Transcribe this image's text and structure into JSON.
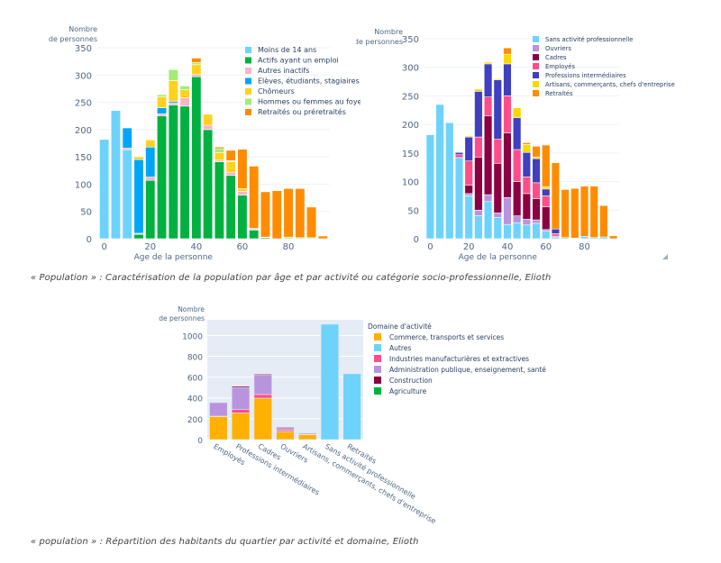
{
  "captions": {
    "caption1": "« Population » : Caractérisation de la population par âge et par activité ou catégorie socio-professionnelle, Elioth",
    "caption2": "« population » : Répartition des habitants du quartier par activité et domaine, Elioth"
  },
  "chart_data": [
    {
      "id": "chart1",
      "type": "bar",
      "stacked": true,
      "title": "",
      "xlabel": "Age de la personne",
      "ylabel": "Nombre de personnes",
      "xlim": [
        -3,
        98
      ],
      "ylim": [
        0,
        350
      ],
      "xticks": [
        0,
        20,
        40,
        60,
        80
      ],
      "yticks": [
        0,
        50,
        100,
        150,
        200,
        250,
        300,
        350
      ],
      "grid": true,
      "legend_position": "top-right",
      "x": [
        0,
        5,
        10,
        15,
        20,
        25,
        30,
        35,
        40,
        45,
        50,
        55,
        60,
        65,
        70,
        75,
        80,
        85,
        90,
        95
      ],
      "series": [
        {
          "name": "Moins de 14 ans",
          "color": "#6dd3fb",
          "values": [
            182,
            235,
            163,
            0,
            0,
            0,
            0,
            0,
            0,
            0,
            0,
            0,
            0,
            0,
            0,
            0,
            0,
            0,
            0,
            0
          ]
        },
        {
          "name": "Actifs ayant un emploi",
          "color": "#00b140",
          "values": [
            0,
            0,
            0,
            8,
            107,
            225,
            245,
            243,
            297,
            200,
            141,
            116,
            80,
            16,
            2,
            0,
            0,
            0,
            0,
            0
          ]
        },
        {
          "name": "Autres inactifs",
          "color": "#ffb3c8",
          "values": [
            0,
            0,
            3,
            2,
            6,
            4,
            4,
            15,
            4,
            8,
            3,
            6,
            7,
            2,
            0,
            0,
            0,
            0,
            0,
            0
          ]
        },
        {
          "name": "Elèves, étudiants, stagiaires",
          "color": "#00a6f5",
          "values": [
            0,
            0,
            37,
            135,
            55,
            11,
            3,
            0,
            0,
            0,
            0,
            0,
            0,
            0,
            0,
            0,
            0,
            0,
            0,
            0
          ]
        },
        {
          "name": "Chômeurs",
          "color": "#ffd21f",
          "values": [
            0,
            0,
            0,
            5,
            13,
            20,
            38,
            15,
            18,
            20,
            14,
            19,
            5,
            1,
            0,
            0,
            0,
            0,
            0,
            0
          ]
        },
        {
          "name": "Hommes ou femmes au foyer",
          "color": "#a4eb78",
          "values": [
            0,
            0,
            0,
            0,
            0,
            4,
            20,
            7,
            4,
            0,
            7,
            2,
            0,
            0,
            1,
            0,
            3,
            2,
            2,
            0
          ]
        },
        {
          "name": "Retraités ou préretraités",
          "color": "#ff8c00",
          "values": [
            0,
            0,
            0,
            0,
            0,
            0,
            0,
            0,
            8,
            0,
            3,
            19,
            72,
            114,
            83,
            88,
            89,
            90,
            56,
            5
          ]
        }
      ]
    },
    {
      "id": "chart2",
      "type": "bar",
      "stacked": true,
      "title": "",
      "xlabel": "Age de la personne",
      "ylabel": "Nombre de personnes",
      "xlim": [
        -3,
        98
      ],
      "ylim": [
        0,
        350
      ],
      "xticks": [
        0,
        20,
        40,
        60,
        80
      ],
      "yticks": [
        0,
        50,
        100,
        150,
        200,
        250,
        300,
        350
      ],
      "grid": true,
      "legend_position": "top-right",
      "x": [
        0,
        5,
        10,
        15,
        20,
        25,
        30,
        35,
        40,
        45,
        50,
        55,
        60,
        65,
        70,
        75,
        80,
        85,
        90,
        95
      ],
      "series": [
        {
          "name": "Sans activité professionnelle",
          "color": "#6dd3fb",
          "values": [
            182,
            235,
            203,
            142,
            75,
            40,
            65,
            37,
            25,
            28,
            24,
            27,
            13,
            2,
            2,
            1,
            4,
            2,
            3,
            0
          ]
        },
        {
          "name": "Ouvriers",
          "color": "#b894de",
          "values": [
            0,
            0,
            0,
            0,
            4,
            10,
            12,
            8,
            47,
            12,
            10,
            6,
            3,
            2,
            0,
            0,
            0,
            0,
            0,
            0
          ]
        },
        {
          "name": "Cadres",
          "color": "#8b0043",
          "values": [
            0,
            0,
            0,
            0,
            15,
            93,
            138,
            87,
            113,
            60,
            45,
            37,
            40,
            2,
            0,
            0,
            0,
            0,
            0,
            0
          ]
        },
        {
          "name": "Employés",
          "color": "#ff4d8a",
          "values": [
            0,
            0,
            0,
            5,
            42,
            35,
            33,
            42,
            65,
            56,
            29,
            28,
            19,
            3,
            0,
            0,
            0,
            0,
            0,
            0
          ]
        },
        {
          "name": "Professions intermédiaires",
          "color": "#3f3fbf",
          "values": [
            0,
            0,
            0,
            4,
            42,
            80,
            58,
            104,
            56,
            56,
            43,
            42,
            12,
            8,
            0,
            0,
            0,
            0,
            0,
            0
          ]
        },
        {
          "name": "Artisans, commerçants, chefs d'entreprise",
          "color": "#ffd600",
          "values": [
            0,
            0,
            0,
            0,
            2,
            4,
            3,
            2,
            17,
            17,
            14,
            3,
            4,
            0,
            0,
            0,
            0,
            0,
            0,
            0
          ]
        },
        {
          "name": "Retraités",
          "color": "#ff8c00",
          "values": [
            0,
            0,
            0,
            0,
            0,
            0,
            0,
            0,
            11,
            0,
            3,
            19,
            73,
            116,
            84,
            87,
            88,
            90,
            55,
            5
          ]
        }
      ]
    },
    {
      "id": "chart3",
      "type": "bar",
      "stacked": true,
      "title": "",
      "xlabel": "",
      "ylabel": "Nombre de personnes",
      "ylim": [
        0,
        1150
      ],
      "yticks": [
        0,
        200,
        400,
        600,
        800,
        1000
      ],
      "grid": true,
      "legend_title": "Domaine d'activité",
      "legend_position": "right",
      "categories": [
        "Employés",
        "Professions intermédiaires",
        "Cadres",
        "Ouvriers",
        "Artisans, commerçants, chefs d'entreprise",
        "Sans activité professionnelle",
        "Retraités"
      ],
      "series": [
        {
          "name": "Commerce, transports et services",
          "color": "#ffb000",
          "values": [
            222,
            255,
            398,
            78,
            48,
            0,
            0
          ]
        },
        {
          "name": "Autres",
          "color": "#6dd3fb",
          "values": [
            0,
            0,
            0,
            0,
            0,
            1108,
            632
          ]
        },
        {
          "name": "Industries manufacturières et extractives",
          "color": "#ff4d8a",
          "values": [
            3,
            33,
            35,
            15,
            4,
            0,
            0
          ]
        },
        {
          "name": "Administration publique, enseignement, santé",
          "color": "#b894de",
          "values": [
            130,
            212,
            185,
            14,
            12,
            0,
            0
          ]
        },
        {
          "name": "Construction",
          "color": "#8b0043",
          "values": [
            0,
            12,
            10,
            10,
            5,
            0,
            0
          ]
        },
        {
          "name": "Agriculture",
          "color": "#00b140",
          "values": [
            0,
            0,
            0,
            0,
            0,
            0,
            0
          ]
        }
      ]
    }
  ]
}
